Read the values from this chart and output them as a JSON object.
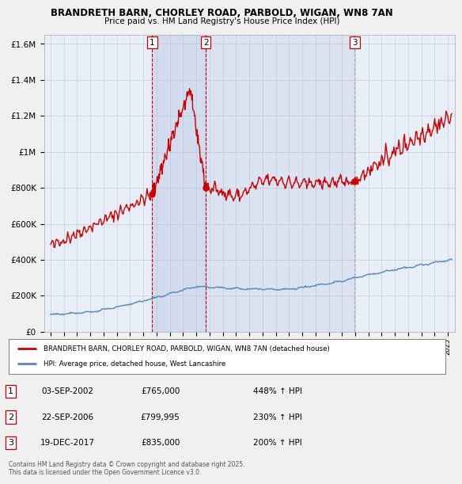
{
  "title1": "BRANDRETH BARN, CHORLEY ROAD, PARBOLD, WIGAN, WN8 7AN",
  "title2": "Price paid vs. HM Land Registry's House Price Index (HPI)",
  "red_label": "BRANDRETH BARN, CHORLEY ROAD, PARBOLD, WIGAN, WN8 7AN (detached house)",
  "blue_label": "HPI: Average price, detached house, West Lancashire",
  "transactions": [
    {
      "num": 1,
      "date": "03-SEP-2002",
      "price": "£765,000",
      "hpi": "448% ↑ HPI",
      "year": 2002.67,
      "price_val": 765000,
      "vline_color": "#cc0000",
      "vline_style": "--"
    },
    {
      "num": 2,
      "date": "22-SEP-2006",
      "price": "£799,995",
      "hpi": "230% ↑ HPI",
      "year": 2006.72,
      "price_val": 799995,
      "vline_color": "#cc0000",
      "vline_style": "--"
    },
    {
      "num": 3,
      "date": "19-DEC-2017",
      "price": "£835,000",
      "hpi": "200% ↑ HPI",
      "year": 2017.96,
      "price_val": 835000,
      "vline_color": "#aaaaaa",
      "vline_style": "--"
    }
  ],
  "footnote": "Contains HM Land Registry data © Crown copyright and database right 2025.\nThis data is licensed under the Open Government Licence v3.0.",
  "ylim": [
    0,
    1650000
  ],
  "yticks": [
    0,
    200000,
    400000,
    600000,
    800000,
    1000000,
    1200000,
    1400000,
    1600000
  ],
  "xlim_start": 1994.5,
  "xlim_end": 2025.5,
  "background_color": "#f0f0f0",
  "plot_bg_color": "#e8eef8",
  "grid_color": "#cccccc",
  "red_color": "#cc0000",
  "blue_color": "#5588bb",
  "shade_color": "#d0ddf0",
  "shade_alpha": 0.7
}
